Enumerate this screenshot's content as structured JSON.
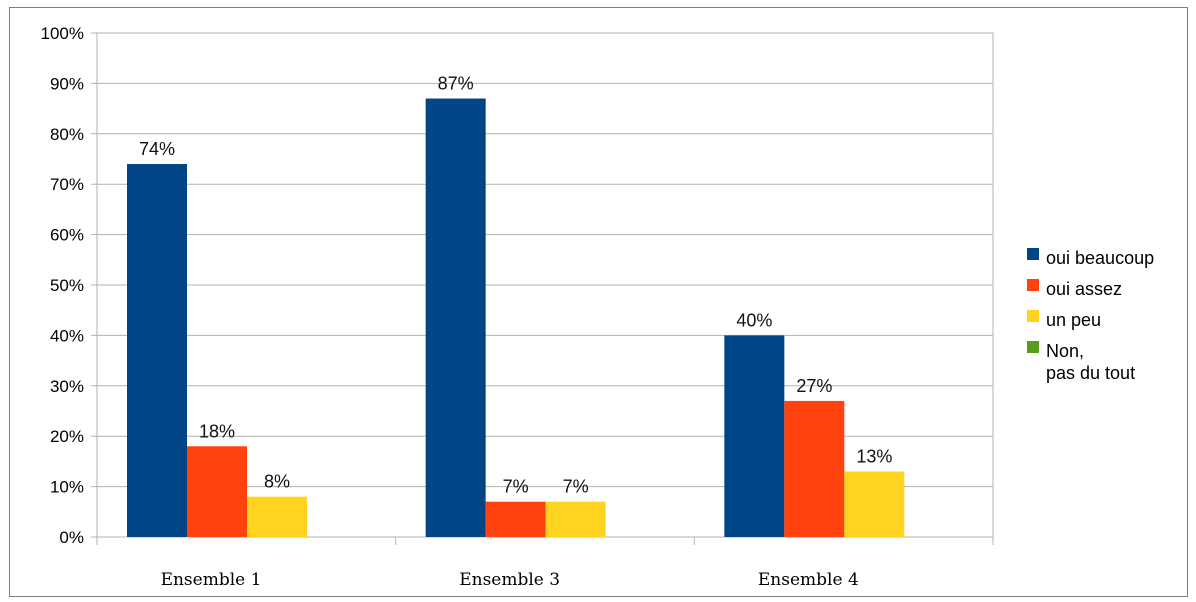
{
  "chart_data": {
    "type": "bar",
    "title": "",
    "xlabel": "",
    "ylabel": "",
    "ylim": [
      0,
      100
    ],
    "y_ticks": [
      "0%",
      "10%",
      "20%",
      "30%",
      "40%",
      "50%",
      "60%",
      "70%",
      "80%",
      "90%",
      "100%"
    ],
    "grid": true,
    "legend_position": "right",
    "categories": [
      "Ensemble 1",
      "Ensemble 3",
      "Ensemble 4"
    ],
    "series": [
      {
        "name": "oui beaucoup",
        "color": "#004586",
        "values": [
          74,
          87,
          40
        ],
        "labels": [
          "74%",
          "87%",
          "40%"
        ]
      },
      {
        "name": "oui assez",
        "color": "#ff420e",
        "values": [
          18,
          7,
          27
        ],
        "labels": [
          "18%",
          "7%",
          "27%"
        ]
      },
      {
        "name": "un peu",
        "color": "#ffd320",
        "values": [
          8,
          7,
          13
        ],
        "labels": [
          "8%",
          "7%",
          "13%"
        ]
      },
      {
        "name": "Non,\npas du tout",
        "color": "#579d1c",
        "values": [
          0,
          0,
          0
        ],
        "labels": []
      }
    ]
  }
}
